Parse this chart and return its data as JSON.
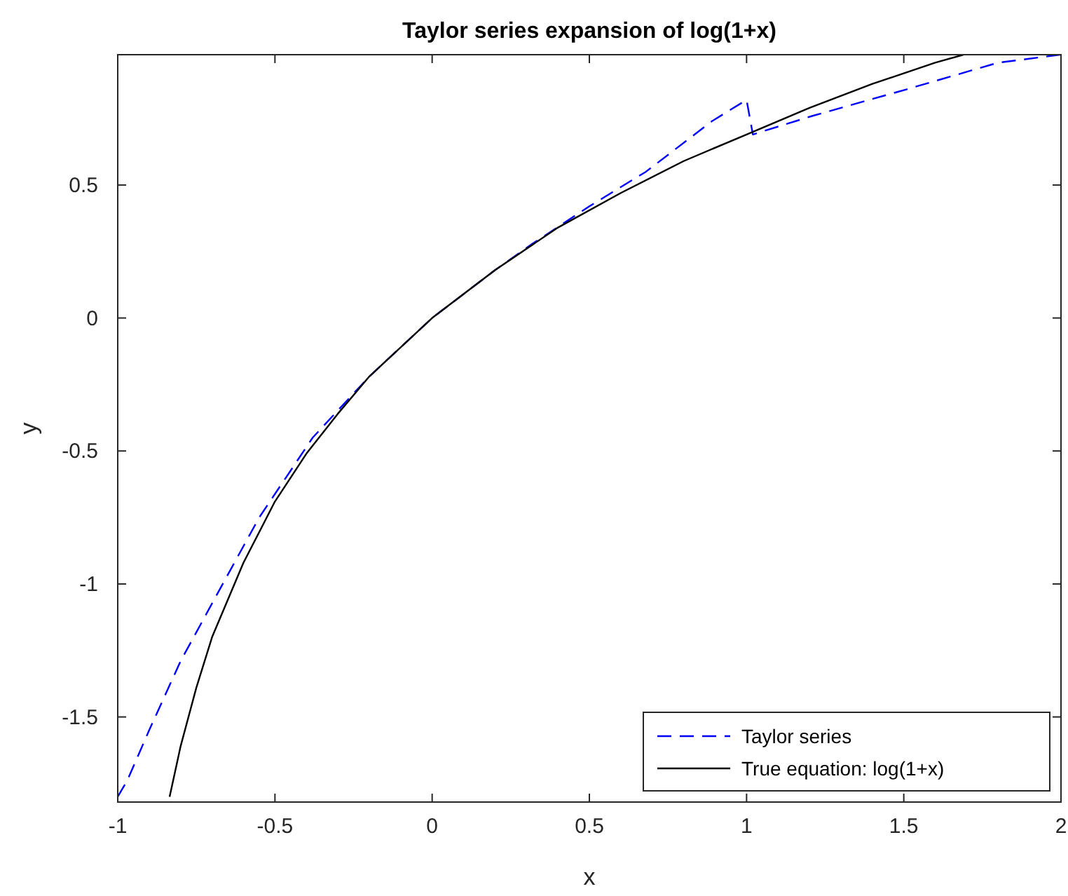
{
  "chart_data": {
    "type": "line",
    "title": "Taylor series expansion of log(1+x)",
    "xlabel": "x",
    "ylabel": "y",
    "xlim": [
      -1,
      2
    ],
    "xticks": [
      -1,
      -0.5,
      0,
      0.5,
      1,
      1.5,
      2
    ],
    "ylim": [
      -1.82,
      0.99
    ],
    "yticks": [
      -1.5,
      -1,
      -0.5,
      0,
      0.5
    ],
    "grid": false,
    "legend": "bottom right",
    "series": [
      {
        "name": "Taylor series",
        "color": "#0000ff",
        "line_style": "dashed",
        "x": [
          -1,
          -0.97,
          -0.9,
          -0.8,
          -0.68,
          -0.55,
          -0.38,
          -0.2,
          0,
          0.2,
          0.32,
          0.5,
          0.68,
          0.89,
          1.0,
          1.02,
          1.21,
          1.51,
          1.8,
          2
        ],
        "values": [
          -1.8,
          -1.74,
          -1.55,
          -1.29,
          -1.03,
          -0.75,
          -0.45,
          -0.22,
          0,
          0.18,
          0.28,
          0.42,
          0.55,
          0.74,
          0.82,
          0.69,
          0.76,
          0.86,
          0.96,
          0.99
        ]
      },
      {
        "name": "True equation: log(1+x)",
        "color": "#000000",
        "line_style": "solid",
        "x": [
          -0.835,
          -0.8,
          -0.75,
          -0.7,
          -0.6,
          -0.5,
          -0.4,
          -0.3,
          -0.2,
          -0.1,
          0,
          0.2,
          0.4,
          0.6,
          0.8,
          1.0,
          1.2,
          1.4,
          1.6,
          1.69
        ],
        "values": [
          -1.8,
          -1.61,
          -1.39,
          -1.2,
          -0.92,
          -0.69,
          -0.51,
          -0.36,
          -0.22,
          -0.11,
          0,
          0.18,
          0.34,
          0.47,
          0.59,
          0.69,
          0.79,
          0.88,
          0.96,
          0.99
        ]
      }
    ]
  }
}
